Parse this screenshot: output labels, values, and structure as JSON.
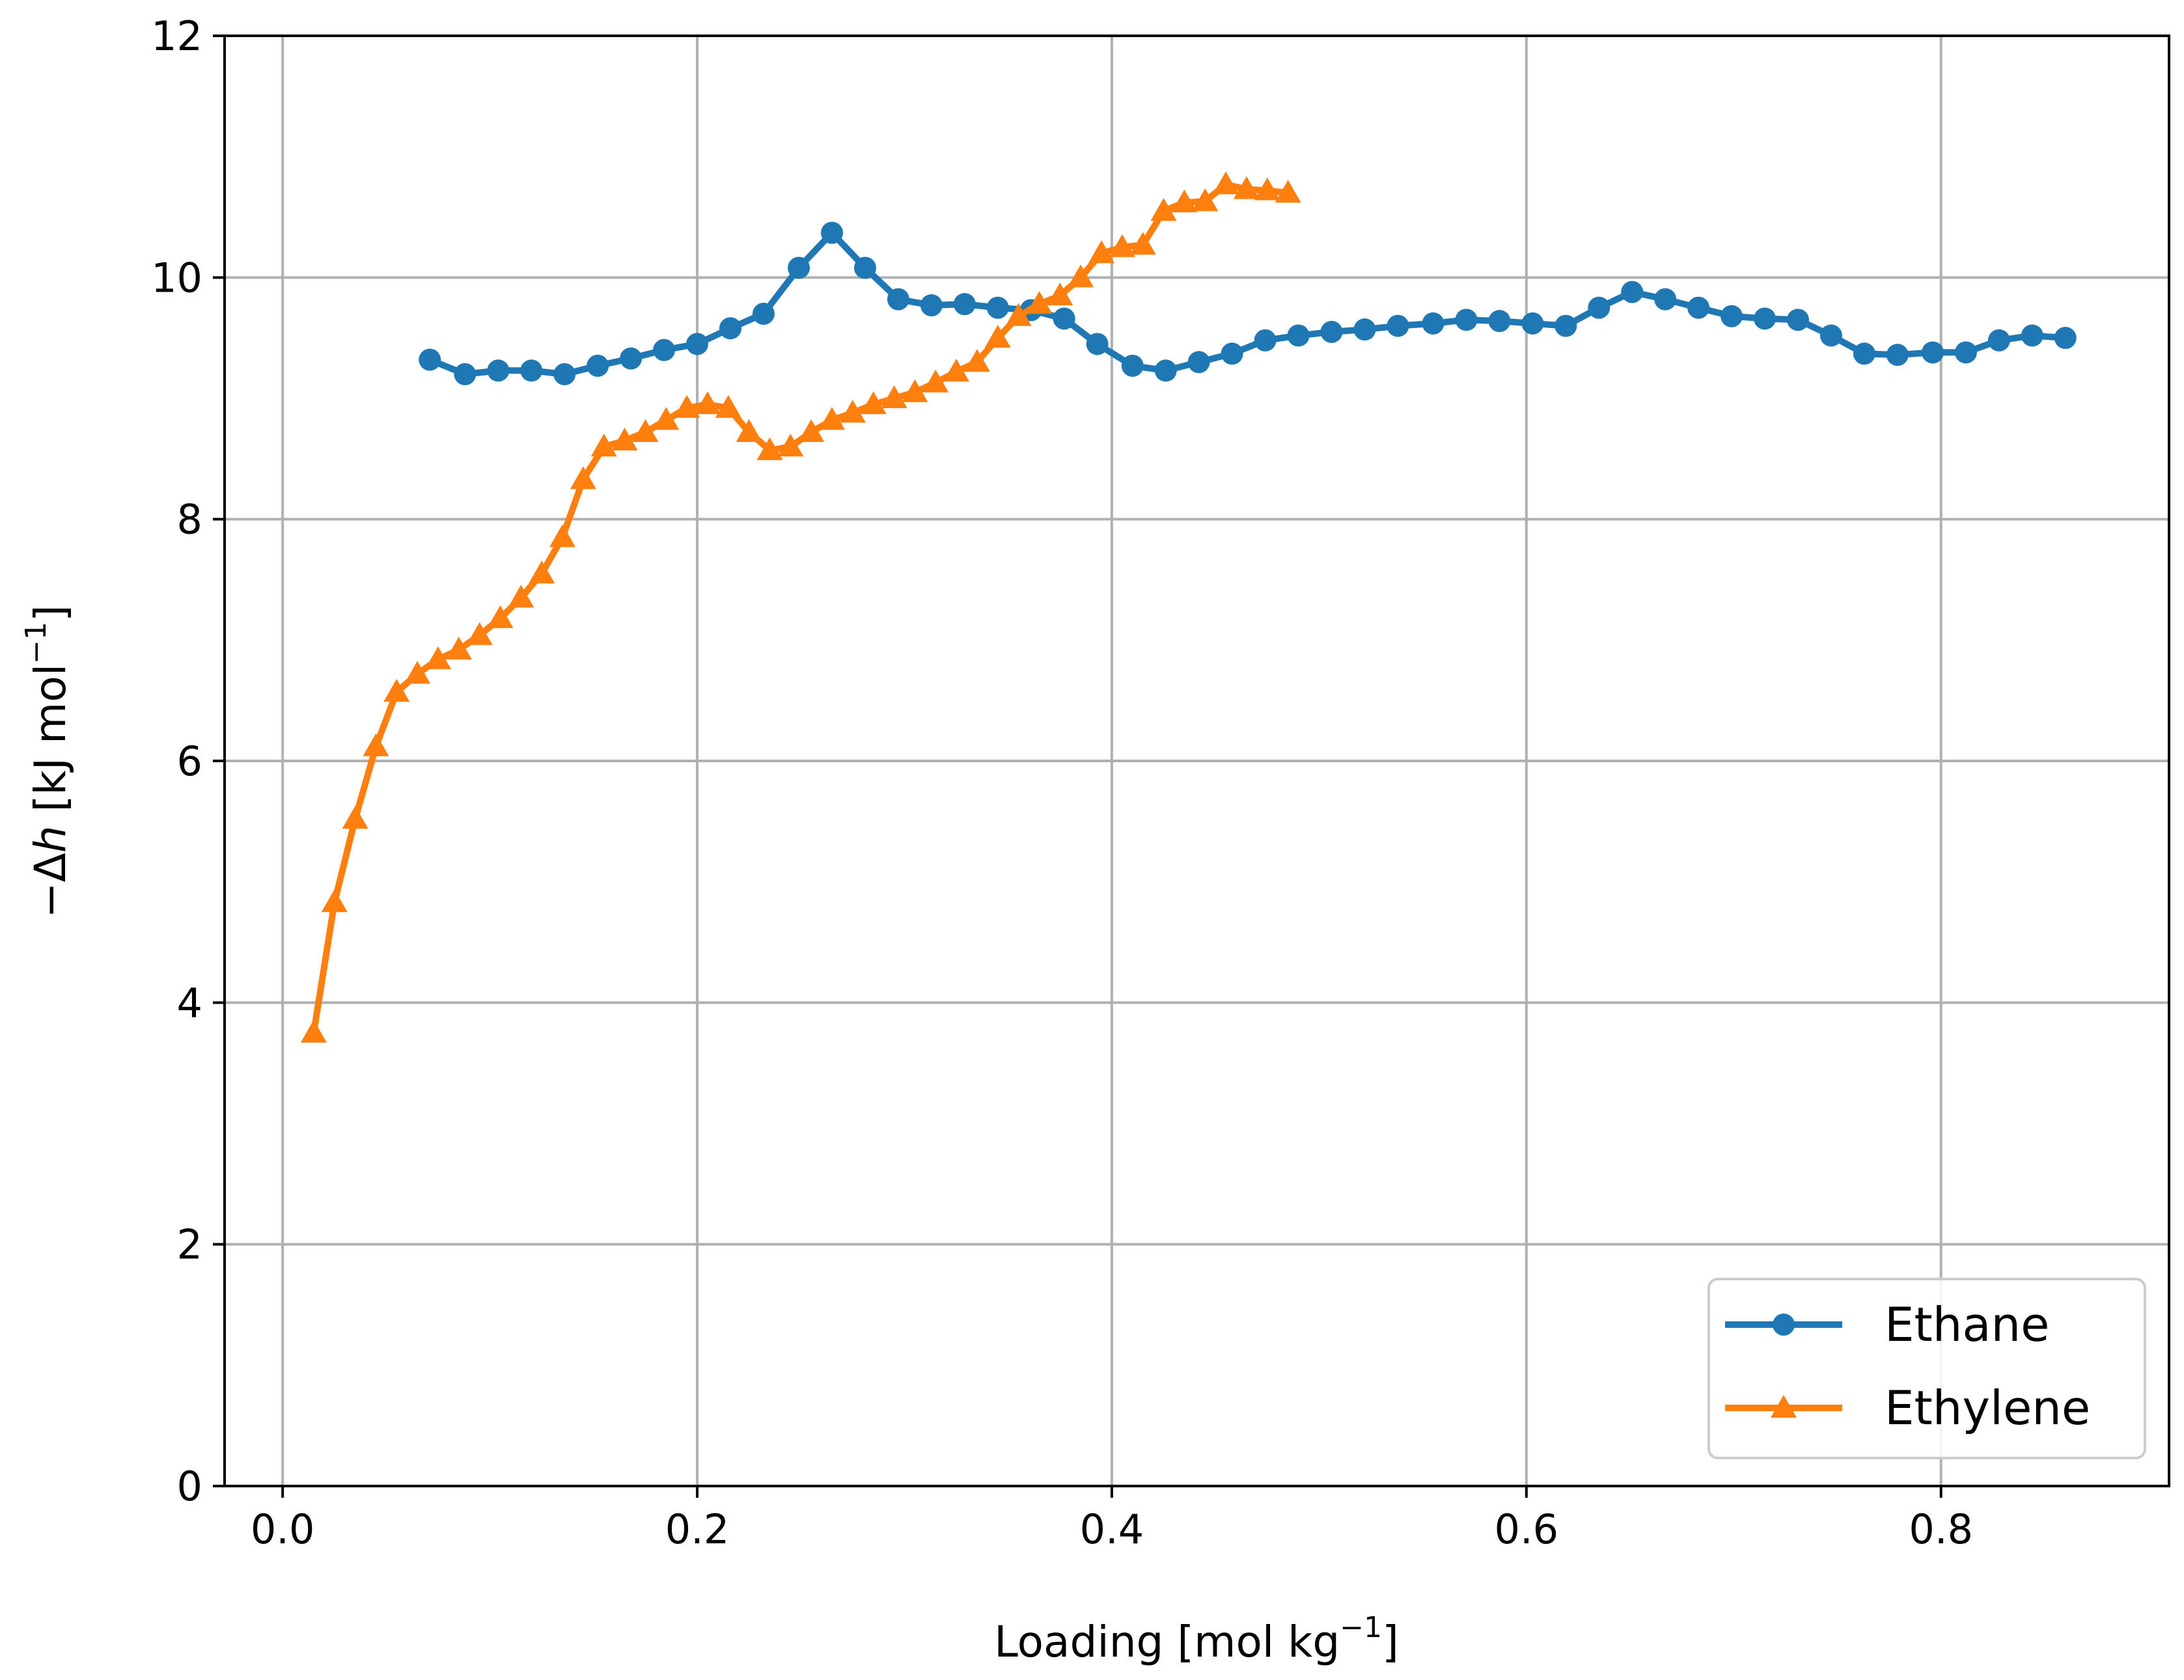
{
  "chart_data": {
    "type": "line",
    "title": "",
    "xlabel": "Loading [mol kg",
    "xlabel_sup": "−1",
    "xlabel_end": "]",
    "ylabel_prefix": "−Δ",
    "ylabel_var": "h",
    "ylabel_mid": " [kJ mol",
    "ylabel_sup": "−1",
    "ylabel_end": "]",
    "xlim": [
      -0.028,
      0.91
    ],
    "ylim": [
      0,
      12
    ],
    "xticks": [
      0.0,
      0.2,
      0.4,
      0.6,
      0.8
    ],
    "xtick_labels": [
      "0.0",
      "0.2",
      "0.4",
      "0.6",
      "0.8"
    ],
    "yticks": [
      0,
      2,
      4,
      6,
      8,
      10,
      12
    ],
    "ytick_labels": [
      "0",
      "2",
      "4",
      "6",
      "8",
      "10",
      "12"
    ],
    "grid": true,
    "legend_position": "lower-right",
    "series": [
      {
        "name": "Ethane",
        "color": "#1f77b4",
        "marker": "circle",
        "x": [
          0.071,
          0.088,
          0.104,
          0.12,
          0.136,
          0.152,
          0.168,
          0.184,
          0.2,
          0.216,
          0.232,
          0.249,
          0.265,
          0.281,
          0.297,
          0.313,
          0.329,
          0.345,
          0.361,
          0.377,
          0.393,
          0.41,
          0.426,
          0.442,
          0.458,
          0.474,
          0.49,
          0.506,
          0.522,
          0.538,
          0.555,
          0.571,
          0.587,
          0.603,
          0.619,
          0.635,
          0.651,
          0.667,
          0.683,
          0.699,
          0.715,
          0.731,
          0.747,
          0.763,
          0.779,
          0.796,
          0.812,
          0.828,
          0.844,
          0.86
        ],
        "y": [
          9.32,
          9.2,
          9.23,
          9.23,
          9.2,
          9.27,
          9.33,
          9.4,
          9.45,
          9.58,
          9.7,
          10.08,
          10.37,
          10.08,
          9.82,
          9.77,
          9.78,
          9.75,
          9.73,
          9.66,
          9.45,
          9.27,
          9.23,
          9.3,
          9.37,
          9.48,
          9.52,
          9.55,
          9.57,
          9.6,
          9.62,
          9.65,
          9.64,
          9.62,
          9.6,
          9.75,
          9.88,
          9.82,
          9.75,
          9.68,
          9.66,
          9.65,
          9.52,
          9.37,
          9.36,
          9.38,
          9.38,
          9.48,
          9.52,
          9.5
        ]
      },
      {
        "name": "Ethylene",
        "color": "#ff7f0e",
        "marker": "triangle",
        "x": [
          0.015,
          0.025,
          0.035,
          0.045,
          0.055,
          0.065,
          0.075,
          0.085,
          0.095,
          0.105,
          0.115,
          0.125,
          0.135,
          0.145,
          0.155,
          0.165,
          0.175,
          0.185,
          0.195,
          0.205,
          0.215,
          0.225,
          0.235,
          0.245,
          0.255,
          0.265,
          0.275,
          0.285,
          0.295,
          0.305,
          0.315,
          0.325,
          0.335,
          0.345,
          0.355,
          0.365,
          0.375,
          0.385,
          0.395,
          0.405,
          0.415,
          0.425,
          0.435,
          0.445,
          0.455,
          0.465,
          0.475,
          0.485
        ],
        "y": [
          3.75,
          4.83,
          5.52,
          6.12,
          6.57,
          6.72,
          6.84,
          6.92,
          7.04,
          7.18,
          7.35,
          7.55,
          7.85,
          8.33,
          8.6,
          8.65,
          8.72,
          8.82,
          8.92,
          8.95,
          8.92,
          8.72,
          8.57,
          8.6,
          8.72,
          8.82,
          8.88,
          8.95,
          9.0,
          9.05,
          9.13,
          9.22,
          9.3,
          9.5,
          9.68,
          9.78,
          9.85,
          10.0,
          10.2,
          10.25,
          10.27,
          10.55,
          10.62,
          10.63,
          10.77,
          10.73,
          10.72,
          10.7
        ]
      }
    ]
  }
}
